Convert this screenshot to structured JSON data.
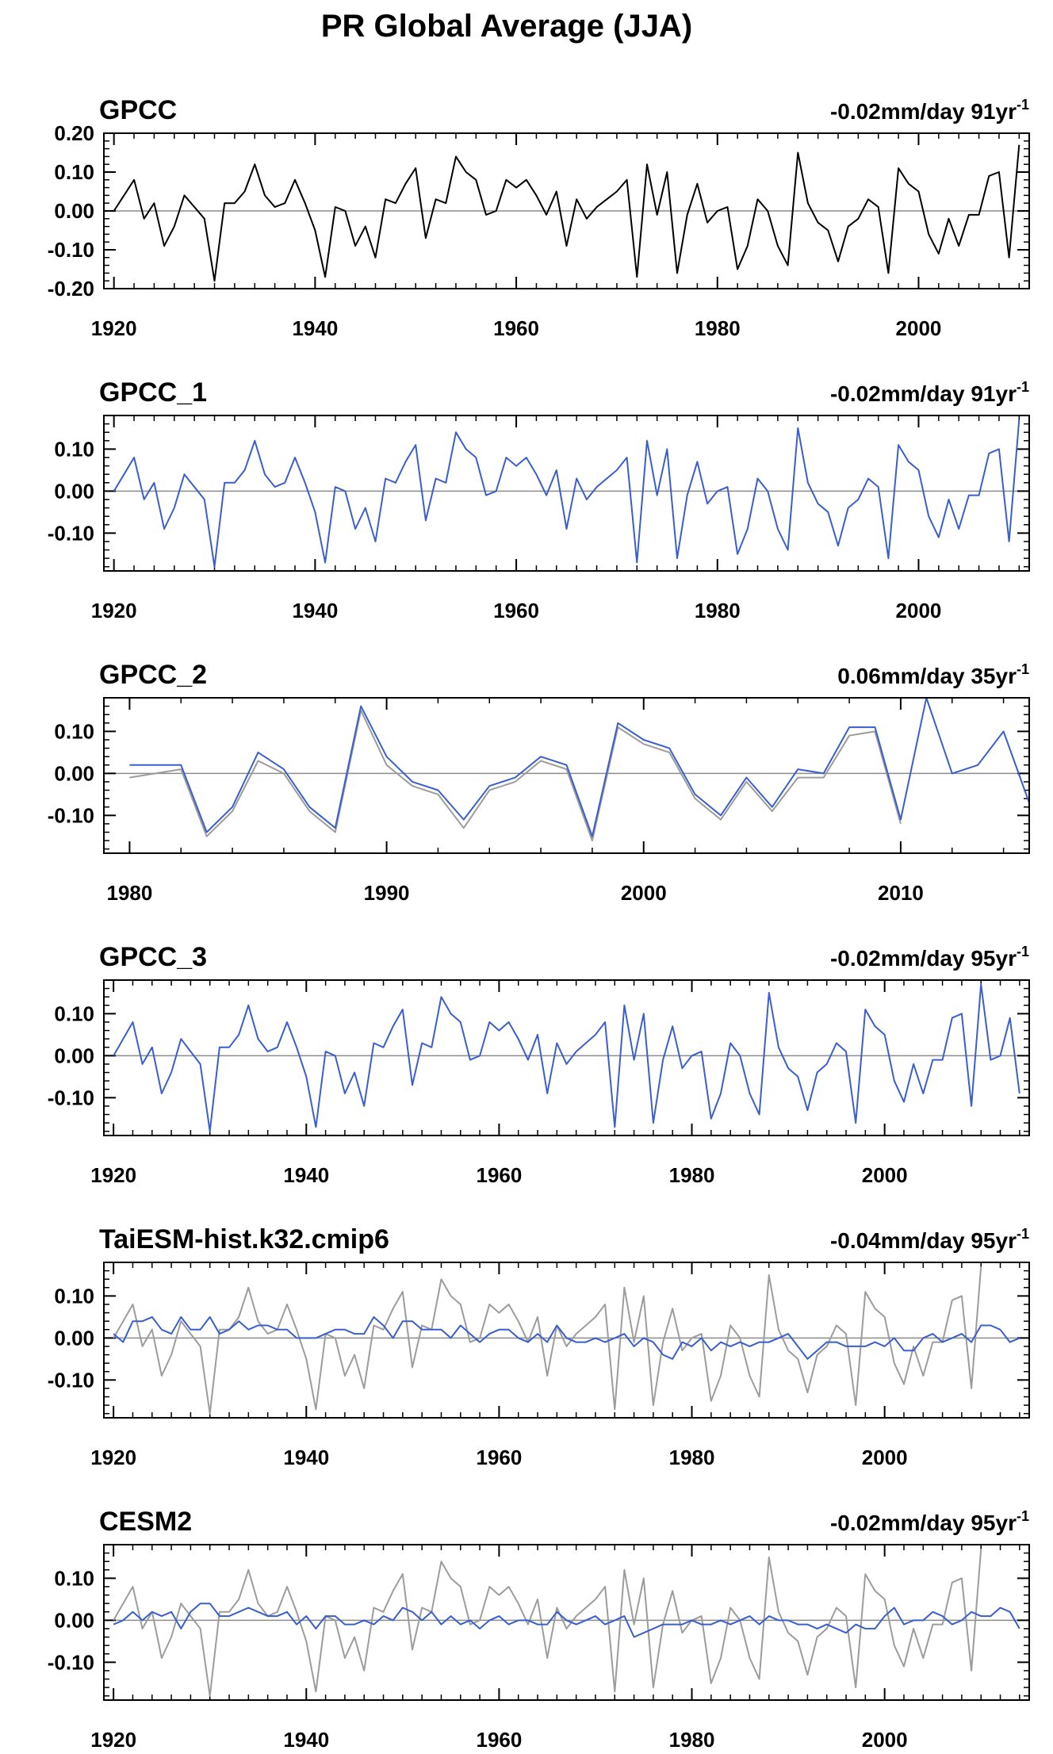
{
  "title": "PR Global Average (JJA)",
  "colors": {
    "observed": "#000000",
    "model": "#3a5fcd",
    "reference": "#9c9c9c",
    "zero_line": "#8c8c8c"
  },
  "chart_data": [
    {
      "type": "line",
      "title": "GPCC",
      "trend": {
        "text": "-0.02mm/day 91yr",
        "superscript": "-1"
      },
      "xlim": [
        1919,
        2011
      ],
      "ylim": [
        -0.2,
        0.2
      ],
      "xticks": [
        1920,
        1940,
        1960,
        1980,
        2000
      ],
      "yticks": [
        -0.2,
        -0.1,
        0.0,
        0.1,
        0.2
      ],
      "ytick_labels": [
        "-0.20",
        "-0.10",
        "0.00",
        "0.10",
        "0.20"
      ],
      "x_start": 1920,
      "series": [
        {
          "color": "#000000",
          "values": [
            0.0,
            0.04,
            0.08,
            -0.02,
            0.02,
            -0.09,
            -0.04,
            0.04,
            0.01,
            -0.02,
            -0.18,
            0.02,
            0.02,
            0.05,
            0.12,
            0.04,
            0.01,
            0.02,
            0.08,
            0.02,
            -0.05,
            -0.17,
            0.01,
            0.0,
            -0.09,
            -0.04,
            -0.12,
            0.03,
            0.02,
            0.07,
            0.11,
            -0.07,
            0.03,
            0.02,
            0.14,
            0.1,
            0.08,
            -0.01,
            0.0,
            0.08,
            0.06,
            0.08,
            0.04,
            -0.01,
            0.05,
            -0.09,
            0.03,
            -0.02,
            0.01,
            0.03,
            0.05,
            0.08,
            -0.17,
            0.12,
            -0.01,
            0.1,
            -0.16,
            -0.01,
            0.07,
            -0.03,
            0.0,
            0.01,
            -0.15,
            -0.09,
            0.03,
            0.0,
            -0.09,
            -0.14,
            0.15,
            0.02,
            -0.03,
            -0.05,
            -0.13,
            -0.04,
            -0.02,
            0.03,
            0.01,
            -0.16,
            0.11,
            0.07,
            0.05,
            -0.06,
            -0.11,
            -0.02,
            -0.09,
            -0.01,
            -0.01,
            0.09,
            0.1,
            -0.12,
            0.17
          ]
        }
      ]
    },
    {
      "type": "line",
      "title": "GPCC_1",
      "trend": {
        "text": "-0.02mm/day 91yr",
        "superscript": "-1"
      },
      "xlim": [
        1919,
        2011
      ],
      "ylim": [
        -0.19,
        0.18
      ],
      "xticks": [
        1920,
        1940,
        1960,
        1980,
        2000
      ],
      "yticks": [
        -0.1,
        0.0,
        0.1
      ],
      "ytick_labels": [
        "-0.10",
        "0.00",
        "0.10"
      ],
      "x_start": 1920,
      "series": [
        {
          "color": "#3a5fcd",
          "values": [
            0.0,
            0.04,
            0.08,
            -0.02,
            0.02,
            -0.09,
            -0.04,
            0.04,
            0.01,
            -0.02,
            -0.18,
            0.02,
            0.02,
            0.05,
            0.12,
            0.04,
            0.01,
            0.02,
            0.08,
            0.02,
            -0.05,
            -0.17,
            0.01,
            0.0,
            -0.09,
            -0.04,
            -0.12,
            0.03,
            0.02,
            0.07,
            0.11,
            -0.07,
            0.03,
            0.02,
            0.14,
            0.1,
            0.08,
            -0.01,
            0.0,
            0.08,
            0.06,
            0.08,
            0.04,
            -0.01,
            0.05,
            -0.09,
            0.03,
            -0.02,
            0.01,
            0.03,
            0.05,
            0.08,
            -0.17,
            0.12,
            -0.01,
            0.1,
            -0.16,
            -0.01,
            0.07,
            -0.03,
            0.0,
            0.01,
            -0.15,
            -0.09,
            0.03,
            0.0,
            -0.09,
            -0.14,
            0.15,
            0.02,
            -0.03,
            -0.05,
            -0.13,
            -0.04,
            -0.02,
            0.03,
            0.01,
            -0.16,
            0.11,
            0.07,
            0.05,
            -0.06,
            -0.11,
            -0.02,
            -0.09,
            -0.01,
            -0.01,
            0.09,
            0.1,
            -0.12,
            0.17
          ]
        }
      ]
    },
    {
      "type": "line",
      "title": "GPCC_2",
      "trend": {
        "text": "0.06mm/day 35yr",
        "superscript": "-1"
      },
      "xlim": [
        1979,
        2015
      ],
      "ylim": [
        -0.19,
        0.18
      ],
      "xticks": [
        1980,
        1990,
        2000,
        2010
      ],
      "yticks": [
        -0.1,
        0.0,
        0.1
      ],
      "ytick_labels": [
        "-0.10",
        "0.00",
        "0.10"
      ],
      "x_start": 1980,
      "series": [
        {
          "color": "#9c9c9c",
          "values": [
            -0.01,
            0.0,
            0.01,
            -0.15,
            -0.09,
            0.03,
            0.0,
            -0.09,
            -0.14,
            0.15,
            0.02,
            -0.03,
            -0.05,
            -0.13,
            -0.04,
            -0.02,
            0.03,
            0.01,
            -0.16,
            0.11,
            0.07,
            0.05,
            -0.06,
            -0.11,
            -0.02,
            -0.09,
            -0.01,
            -0.01,
            0.09,
            0.1,
            -0.12
          ]
        },
        {
          "color": "#3a5fcd",
          "values": [
            0.02,
            0.02,
            0.02,
            -0.14,
            -0.08,
            0.05,
            0.01,
            -0.08,
            -0.13,
            0.16,
            0.04,
            -0.02,
            -0.04,
            -0.11,
            -0.03,
            -0.01,
            0.04,
            0.02,
            -0.15,
            0.12,
            0.08,
            0.06,
            -0.05,
            -0.1,
            -0.01,
            -0.08,
            0.01,
            0.0,
            0.11,
            0.11,
            -0.11,
            0.18,
            0.0,
            0.02,
            0.1,
            -0.07
          ]
        }
      ]
    },
    {
      "type": "line",
      "title": "GPCC_3",
      "trend": {
        "text": "-0.02mm/day 95yr",
        "superscript": "-1"
      },
      "xlim": [
        1919,
        2015
      ],
      "ylim": [
        -0.19,
        0.18
      ],
      "xticks": [
        1920,
        1940,
        1960,
        1980,
        2000
      ],
      "yticks": [
        -0.1,
        0.0,
        0.1
      ],
      "ytick_labels": [
        "-0.10",
        "0.00",
        "0.10"
      ],
      "x_start": 1920,
      "series": [
        {
          "color": "#3a5fcd",
          "values": [
            0.0,
            0.04,
            0.08,
            -0.02,
            0.02,
            -0.09,
            -0.04,
            0.04,
            0.01,
            -0.02,
            -0.18,
            0.02,
            0.02,
            0.05,
            0.12,
            0.04,
            0.01,
            0.02,
            0.08,
            0.02,
            -0.05,
            -0.17,
            0.01,
            0.0,
            -0.09,
            -0.04,
            -0.12,
            0.03,
            0.02,
            0.07,
            0.11,
            -0.07,
            0.03,
            0.02,
            0.14,
            0.1,
            0.08,
            -0.01,
            0.0,
            0.08,
            0.06,
            0.08,
            0.04,
            -0.01,
            0.05,
            -0.09,
            0.03,
            -0.02,
            0.01,
            0.03,
            0.05,
            0.08,
            -0.17,
            0.12,
            -0.01,
            0.1,
            -0.16,
            -0.01,
            0.07,
            -0.03,
            0.0,
            0.01,
            -0.15,
            -0.09,
            0.03,
            0.0,
            -0.09,
            -0.14,
            0.15,
            0.02,
            -0.03,
            -0.05,
            -0.13,
            -0.04,
            -0.02,
            0.03,
            0.01,
            -0.16,
            0.11,
            0.07,
            0.05,
            -0.06,
            -0.11,
            -0.02,
            -0.09,
            -0.01,
            -0.01,
            0.09,
            0.1,
            -0.12,
            0.17,
            -0.01,
            0.0,
            0.09,
            -0.09
          ]
        }
      ]
    },
    {
      "type": "line",
      "title": "TaiESM-hist.k32.cmip6",
      "trend": {
        "text": "-0.04mm/day 95yr",
        "superscript": "-1"
      },
      "xlim": [
        1919,
        2015
      ],
      "ylim": [
        -0.19,
        0.18
      ],
      "xticks": [
        1920,
        1940,
        1960,
        1980,
        2000
      ],
      "yticks": [
        -0.1,
        0.0,
        0.1
      ],
      "ytick_labels": [
        "-0.10",
        "0.00",
        "0.10"
      ],
      "x_start": 1920,
      "series": [
        {
          "color": "#9c9c9c",
          "values": [
            0.0,
            0.04,
            0.08,
            -0.02,
            0.02,
            -0.09,
            -0.04,
            0.04,
            0.01,
            -0.02,
            -0.18,
            0.02,
            0.02,
            0.05,
            0.12,
            0.04,
            0.01,
            0.02,
            0.08,
            0.02,
            -0.05,
            -0.17,
            0.01,
            0.0,
            -0.09,
            -0.04,
            -0.12,
            0.03,
            0.02,
            0.07,
            0.11,
            -0.07,
            0.03,
            0.02,
            0.14,
            0.1,
            0.08,
            -0.01,
            0.0,
            0.08,
            0.06,
            0.08,
            0.04,
            -0.01,
            0.05,
            -0.09,
            0.03,
            -0.02,
            0.01,
            0.03,
            0.05,
            0.08,
            -0.17,
            0.12,
            -0.01,
            0.1,
            -0.16,
            -0.01,
            0.07,
            -0.03,
            0.0,
            0.01,
            -0.15,
            -0.09,
            0.03,
            0.0,
            -0.09,
            -0.14,
            0.15,
            0.02,
            -0.03,
            -0.05,
            -0.13,
            -0.04,
            -0.02,
            0.03,
            0.01,
            -0.16,
            0.11,
            0.07,
            0.05,
            -0.06,
            -0.11,
            -0.02,
            -0.09,
            -0.01,
            -0.01,
            0.09,
            0.1,
            -0.12,
            0.17
          ]
        },
        {
          "color": "#3a5fcd",
          "values": [
            0.01,
            -0.01,
            0.04,
            0.04,
            0.05,
            0.02,
            0.01,
            0.05,
            0.02,
            0.02,
            0.05,
            0.01,
            0.02,
            0.04,
            0.02,
            0.03,
            0.03,
            0.02,
            0.02,
            0.0,
            0.0,
            0.0,
            0.01,
            0.02,
            0.02,
            0.01,
            0.01,
            0.05,
            0.03,
            0.0,
            0.04,
            0.04,
            0.02,
            0.02,
            0.02,
            0.0,
            0.03,
            0.01,
            -0.01,
            0.01,
            0.02,
            0.02,
            0.0,
            -0.01,
            0.01,
            -0.01,
            0.03,
            0.0,
            -0.01,
            -0.01,
            0.0,
            -0.01,
            0.0,
            0.01,
            -0.02,
            0.0,
            -0.01,
            -0.04,
            -0.05,
            -0.01,
            -0.02,
            0.0,
            -0.03,
            -0.01,
            -0.02,
            -0.01,
            -0.02,
            -0.01,
            -0.01,
            0.0,
            0.01,
            -0.02,
            -0.05,
            -0.03,
            -0.01,
            -0.01,
            -0.02,
            -0.02,
            -0.02,
            -0.01,
            -0.02,
            0.0,
            -0.03,
            -0.03,
            0.0,
            0.01,
            -0.01,
            0.0,
            0.01,
            -0.01,
            0.03,
            0.03,
            0.02,
            -0.01,
            0.0
          ]
        }
      ]
    },
    {
      "type": "line",
      "title": "CESM2",
      "trend": {
        "text": "-0.02mm/day 95yr",
        "superscript": "-1"
      },
      "xlim": [
        1919,
        2015
      ],
      "ylim": [
        -0.19,
        0.18
      ],
      "xticks": [
        1920,
        1940,
        1960,
        1980,
        2000
      ],
      "yticks": [
        -0.1,
        0.0,
        0.1
      ],
      "ytick_labels": [
        "-0.10",
        "0.00",
        "0.10"
      ],
      "x_start": 1920,
      "series": [
        {
          "color": "#9c9c9c",
          "values": [
            0.0,
            0.04,
            0.08,
            -0.02,
            0.02,
            -0.09,
            -0.04,
            0.04,
            0.01,
            -0.02,
            -0.18,
            0.02,
            0.02,
            0.05,
            0.12,
            0.04,
            0.01,
            0.02,
            0.08,
            0.02,
            -0.05,
            -0.17,
            0.01,
            0.0,
            -0.09,
            -0.04,
            -0.12,
            0.03,
            0.02,
            0.07,
            0.11,
            -0.07,
            0.03,
            0.02,
            0.14,
            0.1,
            0.08,
            -0.01,
            0.0,
            0.08,
            0.06,
            0.08,
            0.04,
            -0.01,
            0.05,
            -0.09,
            0.03,
            -0.02,
            0.01,
            0.03,
            0.05,
            0.08,
            -0.17,
            0.12,
            -0.01,
            0.1,
            -0.16,
            -0.01,
            0.07,
            -0.03,
            0.0,
            0.01,
            -0.15,
            -0.09,
            0.03,
            0.0,
            -0.09,
            -0.14,
            0.15,
            0.02,
            -0.03,
            -0.05,
            -0.13,
            -0.04,
            -0.02,
            0.03,
            0.01,
            -0.16,
            0.11,
            0.07,
            0.05,
            -0.06,
            -0.11,
            -0.02,
            -0.09,
            -0.01,
            -0.01,
            0.09,
            0.1,
            -0.12,
            0.17
          ]
        },
        {
          "color": "#3a5fcd",
          "values": [
            -0.01,
            0.0,
            0.02,
            0.0,
            0.02,
            0.01,
            0.02,
            -0.02,
            0.02,
            0.04,
            0.04,
            0.01,
            0.01,
            0.02,
            0.03,
            0.02,
            0.01,
            0.01,
            0.02,
            -0.01,
            0.01,
            -0.02,
            0.01,
            0.01,
            -0.01,
            -0.01,
            0.0,
            -0.01,
            0.01,
            0.0,
            0.03,
            0.02,
            0.0,
            0.02,
            -0.01,
            0.01,
            -0.01,
            0.0,
            -0.02,
            0.0,
            0.01,
            -0.01,
            0.0,
            0.0,
            -0.01,
            -0.01,
            0.02,
            0.0,
            -0.01,
            0.0,
            0.01,
            -0.01,
            0.0,
            0.01,
            -0.04,
            -0.03,
            -0.02,
            -0.01,
            -0.01,
            -0.01,
            0.0,
            -0.01,
            -0.01,
            0.0,
            -0.01,
            0.0,
            0.01,
            -0.01,
            0.01,
            0.0,
            0.0,
            -0.01,
            -0.01,
            -0.02,
            -0.01,
            -0.02,
            -0.03,
            -0.01,
            -0.02,
            -0.02,
            0.01,
            0.03,
            -0.01,
            0.0,
            0.0,
            0.02,
            0.01,
            -0.01,
            0.0,
            0.02,
            0.01,
            0.01,
            0.03,
            0.02,
            -0.02
          ]
        }
      ]
    }
  ]
}
